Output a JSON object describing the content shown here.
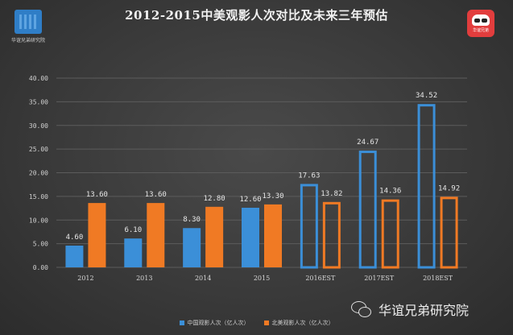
{
  "chart_data": {
    "type": "bar",
    "title": "2012-2015中美观影人次对比及未来三年预估",
    "categories": [
      "2012",
      "2013",
      "2014",
      "2015",
      "2016EST",
      "2017EST",
      "2018EST"
    ],
    "series": [
      {
        "name": "中国观影人次（亿人次）",
        "values": [
          4.6,
          6.1,
          8.3,
          12.6,
          17.63,
          24.67,
          34.52
        ],
        "color": "#3b8fd8",
        "estimate_from_index": 4
      },
      {
        "name": "北美观影人次（亿人次）",
        "values": [
          13.6,
          13.6,
          12.8,
          13.3,
          13.82,
          14.36,
          14.92
        ],
        "color": "#f07a24",
        "estimate_from_index": 4
      }
    ],
    "data_labels": [
      [
        "4.60",
        "6.10",
        "8.30",
        "12.60",
        "17.63",
        "24.67",
        "34.52"
      ],
      [
        "13.60",
        "13.60",
        "12.80",
        "13.30",
        "13.82",
        "14.36",
        "14.92"
      ]
    ],
    "ylim": [
      0,
      40
    ],
    "yticks": [
      "0.00",
      "5.00",
      "10.00",
      "15.00",
      "20.00",
      "25.00",
      "30.00",
      "35.00",
      "40.00"
    ],
    "grid": true,
    "legend_position": "bottom"
  },
  "logos": {
    "left_caption": "华谊兄弟研究院",
    "right_caption": "华谊兄弟"
  },
  "footer": {
    "brand": "华谊兄弟研究院",
    "icon": "wechat-icon"
  }
}
